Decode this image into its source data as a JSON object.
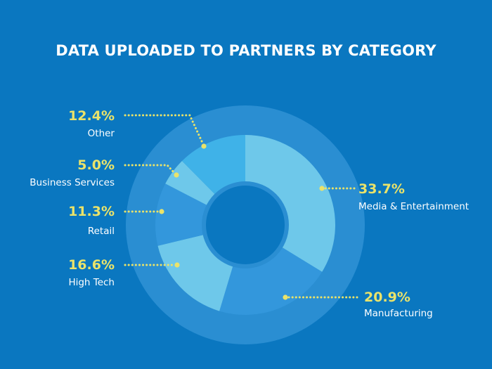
{
  "title": "DATA UPLOADED TO PARTNERS BY CATEGORY",
  "colors": {
    "background": "#0a77c0",
    "ring": "#2a8ed2",
    "hole": "#0a77c0",
    "label_value": "#eae36a",
    "label_text": "#ffffff",
    "leader": "#eae36a"
  },
  "chart_data": {
    "type": "pie",
    "variant": "donut",
    "title": "DATA UPLOADED TO PARTNERS BY CATEGORY",
    "unit": "%",
    "slices": [
      {
        "label": "Media & Entertainment",
        "value": 33.7,
        "display": "33.7%",
        "color": "#6ec8ea"
      },
      {
        "label": "Manufacturing",
        "value": 20.9,
        "display": "20.9%",
        "color": "#3397dc"
      },
      {
        "label": "High Tech",
        "value": 16.6,
        "display": "16.6%",
        "color": "#6ec8ea"
      },
      {
        "label": "Retail",
        "value": 11.3,
        "display": "11.3%",
        "color": "#3397dc"
      },
      {
        "label": "Business Services",
        "value": 5.0,
        "display": "5.0%",
        "color": "#6ec8ea"
      },
      {
        "label": "Other",
        "value": 12.4,
        "display": "12.4%",
        "color": "#3fb2e8"
      }
    ]
  }
}
